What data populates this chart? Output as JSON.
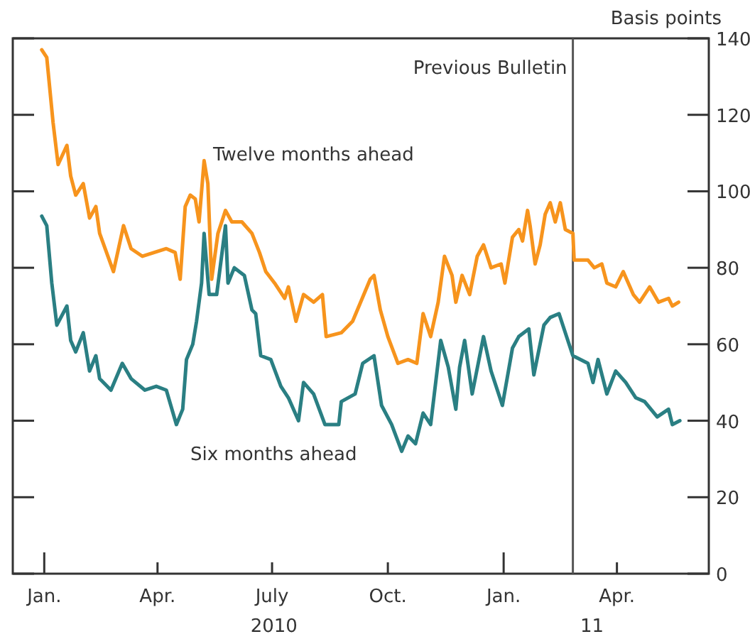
{
  "chart_data": {
    "type": "line",
    "ylabel": "Basis points",
    "xlim": [
      "2009-12-07",
      "2011-06-13"
    ],
    "ylim": [
      0,
      140
    ],
    "yticks": [
      0,
      20,
      40,
      60,
      80,
      100,
      120,
      140
    ],
    "xticks": [
      {
        "value": "2010-01-01",
        "label": "Jan."
      },
      {
        "value": "2010-04-01",
        "label": "Apr."
      },
      {
        "value": "2010-07-01",
        "label": "July"
      },
      {
        "value": "2010-10-01",
        "label": "Oct."
      },
      {
        "value": "2011-01-01",
        "label": "Jan."
      },
      {
        "value": "2011-04-01",
        "label": "Apr."
      }
    ],
    "tick_labels": "xy",
    "grid": false,
    "line_style": "solid",
    "ref_lines": [
      {
        "axis": "x",
        "value": "2011-02-25",
        "label": "Previous Bulletin",
        "color": "#555555"
      }
    ],
    "annotations": [
      "Twelve months ahead",
      "Six months ahead",
      "2010",
      "11"
    ],
    "series": [
      {
        "color": "#f7941d",
        "x": [
          "2009-12-30",
          "2010-01-03",
          "2010-01-08",
          "2010-01-12",
          "2010-01-19",
          "2010-01-22",
          "2010-01-26",
          "2010-02-01",
          "2010-02-06",
          "2010-02-11",
          "2010-02-14",
          "2010-02-25",
          "2010-03-05",
          "2010-03-11",
          "2010-03-20",
          "2010-04-08",
          "2010-04-15",
          "2010-04-19",
          "2010-04-23",
          "2010-04-27",
          "2010-05-01",
          "2010-05-04",
          "2010-05-08",
          "2010-05-11",
          "2010-05-14",
          "2010-05-19",
          "2010-05-25",
          "2010-05-30",
          "2010-06-07",
          "2010-06-15",
          "2010-06-21",
          "2010-06-26",
          "2010-07-03",
          "2010-07-11",
          "2010-07-14",
          "2010-07-20",
          "2010-07-26",
          "2010-08-03",
          "2010-08-10",
          "2010-08-13",
          "2010-08-25",
          "2010-09-03",
          "2010-09-17",
          "2010-09-20",
          "2010-09-25",
          "2010-10-01",
          "2010-10-09",
          "2010-10-17",
          "2010-10-24",
          "2010-10-29",
          "2010-11-04",
          "2010-11-10",
          "2010-11-15",
          "2010-11-21",
          "2010-11-24",
          "2010-11-29",
          "2010-12-05",
          "2010-12-11",
          "2010-12-16",
          "2010-12-22",
          "2010-12-30",
          "2011-01-02",
          "2011-01-08",
          "2011-01-13",
          "2011-01-16",
          "2011-01-20",
          "2011-01-22",
          "2011-01-26",
          "2011-01-30",
          "2011-02-03",
          "2011-02-07",
          "2011-02-11",
          "2011-02-15",
          "2011-02-19",
          "2011-02-25",
          "2011-02-26",
          "2011-03-09",
          "2011-03-14",
          "2011-03-20",
          "2011-03-24",
          "2011-03-31",
          "2011-04-06",
          "2011-04-14",
          "2011-04-19",
          "2011-04-27",
          "2011-05-04",
          "2011-05-12",
          "2011-05-15",
          "2011-05-20"
        ],
        "values": [
          137,
          135,
          118,
          107,
          112,
          104,
          99,
          102,
          93,
          96,
          89,
          79,
          91,
          85,
          83,
          85,
          84,
          77,
          96,
          99,
          98,
          92,
          108,
          102,
          77,
          89,
          95,
          92,
          92,
          89,
          84,
          79,
          76,
          72,
          75,
          66,
          73,
          71,
          73,
          62,
          63,
          66,
          77,
          78,
          69,
          62,
          55,
          56,
          55,
          68,
          62,
          71,
          83,
          78,
          71,
          78,
          73,
          83,
          86,
          80,
          81,
          76,
          88,
          90,
          87,
          95,
          91,
          81,
          86,
          94,
          97,
          92,
          97,
          90,
          89,
          82,
          82,
          80,
          81,
          76,
          75,
          79,
          73,
          71,
          75,
          71,
          72,
          70,
          71
        ]
      },
      {
        "color": "#2a7f83",
        "x": [
          "2009-12-30",
          "2010-01-03",
          "2010-01-07",
          "2010-01-11",
          "2010-01-19",
          "2010-01-22",
          "2010-01-26",
          "2010-02-01",
          "2010-02-06",
          "2010-02-11",
          "2010-02-14",
          "2010-02-23",
          "2010-03-04",
          "2010-03-11",
          "2010-03-22",
          "2010-03-31",
          "2010-04-08",
          "2010-04-16",
          "2010-04-21",
          "2010-04-24",
          "2010-04-29",
          "2010-05-02",
          "2010-05-06",
          "2010-05-08",
          "2010-05-12",
          "2010-05-18",
          "2010-05-25",
          "2010-05-27",
          "2010-06-01",
          "2010-06-09",
          "2010-06-15",
          "2010-06-18",
          "2010-06-22",
          "2010-06-30",
          "2010-07-08",
          "2010-07-14",
          "2010-07-22",
          "2010-07-26",
          "2010-08-03",
          "2010-08-12",
          "2010-08-23",
          "2010-08-25",
          "2010-09-05",
          "2010-09-11",
          "2010-09-20",
          "2010-09-26",
          "2010-10-04",
          "2010-10-12",
          "2010-10-17",
          "2010-10-23",
          "2010-10-29",
          "2010-11-04",
          "2010-11-12",
          "2010-11-18",
          "2010-11-24",
          "2010-11-27",
          "2010-12-01",
          "2010-12-07",
          "2010-12-16",
          "2010-12-22",
          "2010-12-31",
          "2011-01-08",
          "2011-01-13",
          "2011-01-21",
          "2011-01-25",
          "2011-02-02",
          "2011-02-07",
          "2011-02-14",
          "2011-02-19",
          "2011-02-25",
          "2011-03-09",
          "2011-03-13",
          "2011-03-17",
          "2011-03-24",
          "2011-03-31",
          "2011-04-08",
          "2011-04-16",
          "2011-04-23",
          "2011-05-03",
          "2011-05-12",
          "2011-05-15",
          "2011-05-21"
        ],
        "values": [
          93.5,
          91,
          76,
          65,
          70,
          61,
          58,
          63,
          53,
          57,
          51,
          48,
          55,
          51,
          48,
          49,
          48,
          39,
          43,
          56,
          60,
          66,
          76,
          89,
          73,
          73,
          91,
          76,
          80,
          78,
          69,
          68,
          57,
          56,
          49,
          46,
          40,
          50,
          47,
          39,
          39,
          45,
          47,
          55,
          57,
          44,
          39,
          32,
          36,
          34,
          42,
          39,
          61,
          54,
          43,
          54,
          61,
          47,
          62,
          53,
          44,
          59,
          62,
          64,
          52,
          65,
          67,
          68,
          63,
          57,
          55,
          50,
          56,
          47,
          53,
          50,
          46,
          45,
          41,
          43,
          39,
          40
        ]
      }
    ]
  }
}
